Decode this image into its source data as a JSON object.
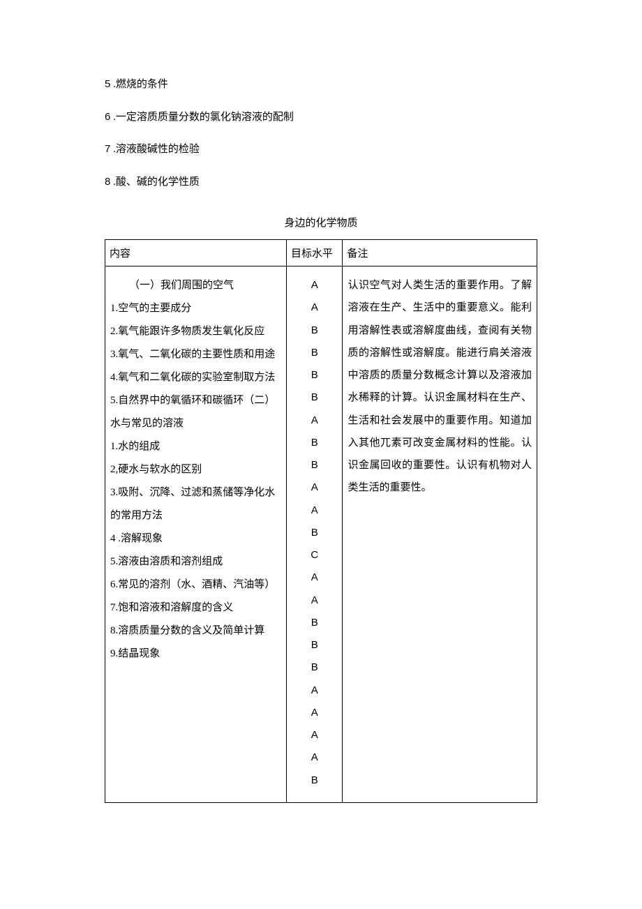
{
  "topList": [
    {
      "num": "5",
      "text": "燃烧的条件"
    },
    {
      "num": "6",
      "text": "一定溶质质量分数的氯化钠溶液的配制"
    },
    {
      "num": "7",
      "text": "溶液酸碱性的检验"
    },
    {
      "num": "8",
      "text": "酸、碱的化学性质"
    }
  ],
  "tableTitle": "身边的化学物质",
  "headers": {
    "c1": "内容",
    "c2": "目标水平",
    "c3": "备注"
  },
  "contentLines": [
    "（一）我们周围的空气",
    "1.空气的主要成分",
    "2.氧气能跟许多物质发生氧化反应",
    "3.氧气、二氧化碳的主要性质和用途",
    "4.氧气和二氧化碳的实验室制取方法",
    "5.自然界中的氧循环和碳循环（二）水与常见的溶液",
    "1.水的组成",
    "2,硬水与软水的区别",
    "3.吸附、沉降、过滤和蒸储等净化水的常用方法",
    "4 .溶解现象",
    "5.溶液由溶质和溶剂组成",
    "6.常见的溶剂（水、酒精、汽油等）",
    "7.饱和溶液和溶解度的含义",
    "8.溶质质量分数的含义及简单计算",
    "9.结晶现象"
  ],
  "levels": [
    "A",
    "A",
    "B",
    "B",
    "B",
    "B",
    "A",
    "B",
    "B",
    "A",
    "A",
    "B",
    "C",
    "A",
    "A",
    "B",
    "B",
    "B",
    "A",
    "A",
    "A",
    "A",
    "B"
  ],
  "notes": "认识空气对人类生活的重要作用。了解溶液在生产、生活中的重要意义。能利用溶解性表或溶解度曲线，查阅有关物质的溶解性或溶解度。能进行肩关溶液中溶质的质量分数概念计算以及溶液加水稀释的计算。认识金属材料在生产、生活和社会发展中的重要作用。知道加入其他兀素可改变金属材料的性能。认识金属回收的重要性。认识有机物对人类生活的重要性。",
  "colors": {
    "text": "#000000",
    "background": "#ffffff",
    "border": "#000000"
  },
  "fonts": {
    "body_family": "SimSun",
    "latin_family": "Arial",
    "body_size_pt": 11
  }
}
